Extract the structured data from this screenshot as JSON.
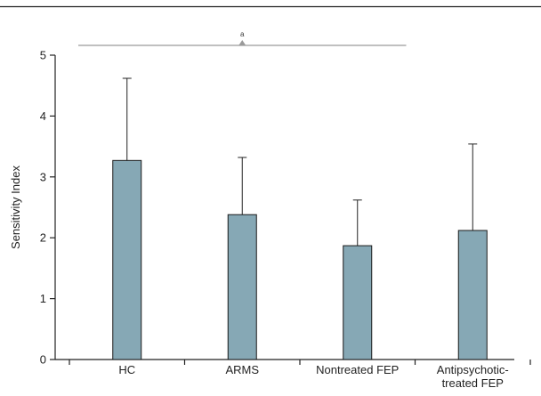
{
  "chart_data": {
    "type": "bar",
    "categories": [
      "HC",
      "ARMS",
      "Nontreated FEP",
      "Antipsychotic-treated FEP"
    ],
    "category_lines": [
      [
        "HC"
      ],
      [
        "ARMS"
      ],
      [
        "Nontreated FEP"
      ],
      [
        "Antipsychotic-",
        "treated FEP"
      ]
    ],
    "values": [
      3.27,
      2.38,
      1.87,
      2.12
    ],
    "error_upper": [
      4.62,
      3.32,
      2.62,
      3.54
    ],
    "ylabel": "Sensitivity Index",
    "xlabel": "",
    "ylim": [
      0,
      5
    ],
    "yticks": [
      0,
      1,
      2,
      3,
      4,
      5
    ],
    "grid": false,
    "bar_color": "#86a8b5",
    "bar_edge_color": "#1a1a1a",
    "significance": {
      "from": "HC",
      "to": "Nontreated FEP",
      "label": "a",
      "color": "#9a9a9a"
    }
  }
}
